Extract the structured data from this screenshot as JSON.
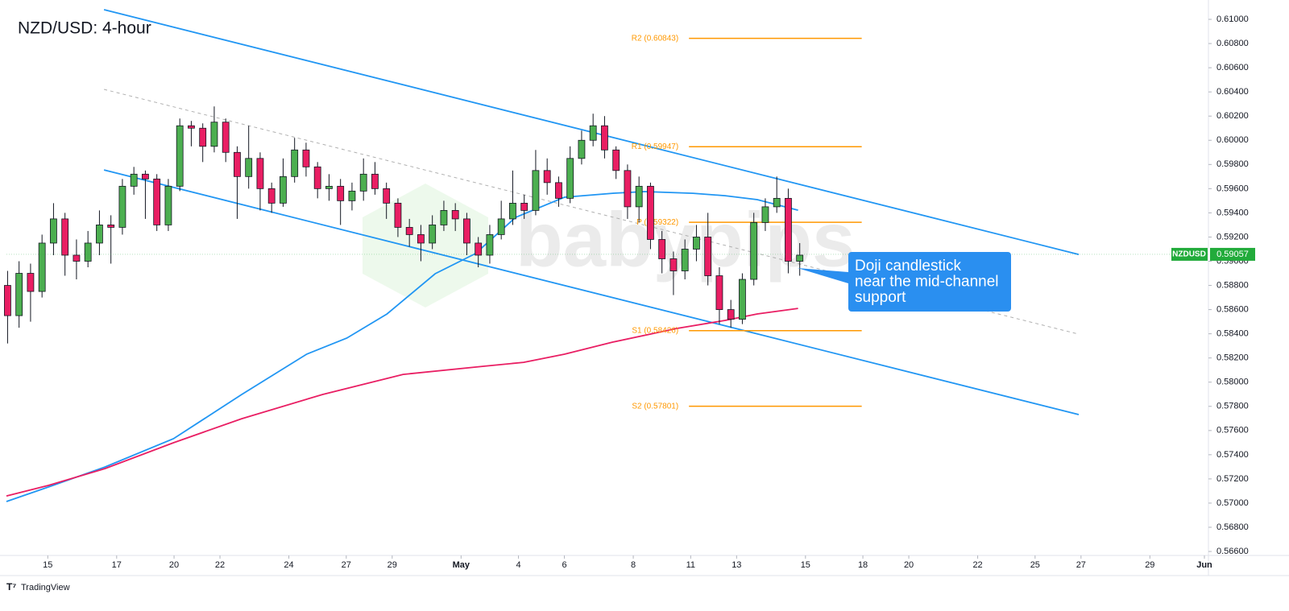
{
  "chart_data": {
    "type": "candlestick",
    "title": "NZD/USD: 4-hour",
    "watermark": "babypips",
    "footer": "TradingView",
    "x": [
      -7,
      -5,
      -3,
      -1,
      1,
      3,
      5,
      7,
      9,
      11,
      13,
      15,
      17,
      19,
      21,
      23,
      25,
      27,
      29,
      31,
      33,
      35,
      37,
      39,
      41,
      43,
      45,
      47,
      49,
      51,
      53,
      55,
      57,
      59,
      61,
      63,
      65,
      67,
      69,
      71,
      73,
      75,
      77,
      79,
      81,
      83,
      85,
      87,
      89,
      91,
      93,
      95,
      97,
      99,
      101,
      103,
      105,
      107,
      109,
      111,
      113,
      115,
      117,
      119,
      121,
      123,
      125,
      127,
      129,
      131
    ],
    "open": [
      0.588,
      0.5855,
      0.589,
      0.5875,
      0.5915,
      0.5935,
      0.5905,
      0.59,
      0.5915,
      0.593,
      0.5928,
      0.5962,
      0.5972,
      0.5968,
      0.593,
      0.5962,
      0.6012,
      0.601,
      0.5995,
      0.6015,
      0.599,
      0.597,
      0.5985,
      0.596,
      0.5948,
      0.597,
      0.5992,
      0.5978,
      0.596,
      0.5962,
      0.595,
      0.5958,
      0.5972,
      0.596,
      0.5948,
      0.5928,
      0.5922,
      0.5915,
      0.593,
      0.5942,
      0.5935,
      0.5915,
      0.5905,
      0.5922,
      0.5935,
      0.5948,
      0.5942,
      0.5975,
      0.5965,
      0.5952,
      0.5985,
      0.6,
      0.6012,
      0.5992,
      0.5975,
      0.5945,
      0.5962,
      0.5918,
      0.5902,
      0.5892,
      0.591,
      0.592,
      0.5888,
      0.586,
      0.5852,
      0.5885,
      0.5932,
      0.5945,
      0.5952,
      0.59
    ],
    "high": [
      0.5892,
      0.59,
      0.5898,
      0.5922,
      0.5948,
      0.594,
      0.5918,
      0.5925,
      0.5942,
      0.5938,
      0.5968,
      0.5978,
      0.5975,
      0.5972,
      0.5968,
      0.6018,
      0.6016,
      0.6014,
      0.6028,
      0.6018,
      0.5995,
      0.6012,
      0.599,
      0.5965,
      0.5985,
      0.6002,
      0.5998,
      0.5982,
      0.5972,
      0.5968,
      0.5965,
      0.5985,
      0.5982,
      0.5965,
      0.5952,
      0.5935,
      0.593,
      0.5938,
      0.595,
      0.5948,
      0.594,
      0.592,
      0.593,
      0.595,
      0.5975,
      0.5955,
      0.5992,
      0.5985,
      0.597,
      0.5995,
      0.6008,
      0.6022,
      0.602,
      0.5995,
      0.598,
      0.597,
      0.5965,
      0.5925,
      0.5908,
      0.5918,
      0.593,
      0.594,
      0.5895,
      0.5868,
      0.589,
      0.594,
      0.5952,
      0.597,
      0.596,
      0.5915
    ],
    "low": [
      0.5832,
      0.5845,
      0.585,
      0.587,
      0.5905,
      0.5888,
      0.5885,
      0.5895,
      0.5905,
      0.5898,
      0.5922,
      0.5955,
      0.5935,
      0.5925,
      0.5925,
      0.5958,
      0.5995,
      0.5982,
      0.599,
      0.5982,
      0.5935,
      0.596,
      0.5942,
      0.594,
      0.5945,
      0.5965,
      0.597,
      0.5952,
      0.595,
      0.593,
      0.5942,
      0.595,
      0.5955,
      0.5935,
      0.592,
      0.5912,
      0.59,
      0.591,
      0.5925,
      0.5925,
      0.5905,
      0.5895,
      0.5898,
      0.5918,
      0.593,
      0.5935,
      0.5938,
      0.5955,
      0.5945,
      0.5948,
      0.598,
      0.5995,
      0.5985,
      0.5968,
      0.5935,
      0.5932,
      0.591,
      0.589,
      0.5872,
      0.5885,
      0.59,
      0.588,
      0.5848,
      0.5845,
      0.5848,
      0.588,
      0.5925,
      0.594,
      0.589,
      0.5888
    ],
    "close": [
      0.5855,
      0.589,
      0.5875,
      0.5915,
      0.5935,
      0.5905,
      0.59,
      0.5915,
      0.593,
      0.5928,
      0.5962,
      0.5972,
      0.5968,
      0.593,
      0.5962,
      0.6012,
      0.601,
      0.5995,
      0.6015,
      0.599,
      0.597,
      0.5985,
      0.596,
      0.5948,
      0.597,
      0.5992,
      0.5978,
      0.596,
      0.5962,
      0.595,
      0.5958,
      0.5972,
      0.596,
      0.5948,
      0.5928,
      0.5922,
      0.5915,
      0.593,
      0.5942,
      0.5935,
      0.5915,
      0.5905,
      0.5922,
      0.5935,
      0.5948,
      0.5942,
      0.5975,
      0.5965,
      0.5952,
      0.5985,
      0.6,
      0.6012,
      0.5992,
      0.5975,
      0.5945,
      0.5962,
      0.5918,
      0.5902,
      0.5892,
      0.591,
      0.592,
      0.5888,
      0.586,
      0.5852,
      0.5885,
      0.5932,
      0.5945,
      0.5952,
      0.59,
      0.5905
    ],
    "up_color": "#4caf50",
    "down_color": "#e91e63",
    "xlim": [
      -7.2,
      202.2
    ],
    "xticks": [
      {
        "value": 0,
        "label": "15"
      },
      {
        "value": 12,
        "label": "17"
      },
      {
        "value": 22,
        "label": "20"
      },
      {
        "value": 30,
        "label": "22"
      },
      {
        "value": 42,
        "label": "24"
      },
      {
        "value": 52,
        "label": "27"
      },
      {
        "value": 60,
        "label": "29"
      },
      {
        "value": 72,
        "label": "May"
      },
      {
        "value": 82,
        "label": "4"
      },
      {
        "value": 90,
        "label": "6"
      },
      {
        "value": 102,
        "label": "8"
      },
      {
        "value": 112,
        "label": "11"
      },
      {
        "value": 120,
        "label": "13"
      },
      {
        "value": 132,
        "label": "15"
      },
      {
        "value": 142,
        "label": "18"
      },
      {
        "value": 150,
        "label": "20"
      },
      {
        "value": 162,
        "label": "22"
      },
      {
        "value": 172,
        "label": "25"
      },
      {
        "value": 180,
        "label": "27"
      },
      {
        "value": 192,
        "label": "29"
      },
      {
        "value": 201.5,
        "label": "Jun"
      }
    ],
    "ylim": [
      0.56567,
      0.6116
    ],
    "yticks": [
      {
        "value": 0.61,
        "label": "0.61000"
      },
      {
        "value": 0.608,
        "label": "0.60800"
      },
      {
        "value": 0.606,
        "label": "0.60600"
      },
      {
        "value": 0.604,
        "label": "0.60400"
      },
      {
        "value": 0.602,
        "label": "0.60200"
      },
      {
        "value": 0.6,
        "label": "0.60000"
      },
      {
        "value": 0.598,
        "label": "0.59800"
      },
      {
        "value": 0.596,
        "label": "0.59600"
      },
      {
        "value": 0.594,
        "label": "0.59400"
      },
      {
        "value": 0.592,
        "label": "0.59200"
      },
      {
        "value": 0.59,
        "label": "0.59000"
      },
      {
        "value": 0.588,
        "label": "0.58800"
      },
      {
        "value": 0.586,
        "label": "0.58600"
      },
      {
        "value": 0.584,
        "label": "0.58400"
      },
      {
        "value": 0.582,
        "label": "0.58200"
      },
      {
        "value": 0.58,
        "label": "0.58000"
      },
      {
        "value": 0.578,
        "label": "0.57800"
      },
      {
        "value": 0.576,
        "label": "0.57600"
      },
      {
        "value": 0.574,
        "label": "0.57400"
      },
      {
        "value": 0.572,
        "label": "0.57200"
      },
      {
        "value": 0.57,
        "label": "0.57000"
      },
      {
        "value": 0.568,
        "label": "0.56800"
      },
      {
        "value": 0.566,
        "label": "0.56600"
      }
    ],
    "grid": false,
    "lines": [
      {
        "color": "#2196f3",
        "dashed": false,
        "x": [
          9.8,
          179.6
        ],
        "values": [
          0.6108,
          0.59056
        ]
      },
      {
        "color": "#2196f3",
        "dashed": false,
        "x": [
          9.8,
          179.6
        ],
        "values": [
          0.59755,
          0.57732
        ]
      },
      {
        "color": "#b0b0b0",
        "dashed": true,
        "x": [
          9.8,
          179.6
        ],
        "values": [
          0.60421,
          0.58397
        ]
      },
      {
        "color": "#2196f3",
        "dashed": false,
        "x": [
          -7.2,
          0.1,
          10.0,
          21.9,
          33.8,
          45.1,
          52.1,
          59.1,
          67.5,
          74.5,
          81.5,
          90.0,
          98.4,
          104.0,
          112.4,
          118.0,
          123.6,
          130.7
        ],
        "values": [
          0.57013,
          0.57133,
          0.57299,
          0.57532,
          0.57898,
          0.58231,
          0.58364,
          0.58564,
          0.58897,
          0.59063,
          0.59363,
          0.59529,
          0.59562,
          0.59576,
          0.59562,
          0.59542,
          0.59509,
          0.59422
        ]
      },
      {
        "color": "#e91e63",
        "dashed": false,
        "x": [
          -7.2,
          0.1,
          10.0,
          21.9,
          33.8,
          47.9,
          61.9,
          75.9,
          82.9,
          90.0,
          98.4,
          109.6,
          118.0,
          123.6,
          130.7
        ],
        "values": [
          0.57059,
          0.57146,
          0.57286,
          0.57499,
          0.57698,
          0.57898,
          0.58064,
          0.58131,
          0.58164,
          0.58231,
          0.58331,
          0.58444,
          0.58511,
          0.58564,
          0.5861
        ]
      }
    ],
    "pivot_color": "#ff9800",
    "pivot_x": [
      111.7,
      141.8
    ],
    "pivots": [
      {
        "label": "R2 (0.60843)",
        "value": 0.60843
      },
      {
        "label": "R1 (0.59947)",
        "value": 0.59947
      },
      {
        "label": "P (0.59322)",
        "value": 0.59322
      },
      {
        "label": "S1 (0.58426)",
        "value": 0.58426
      },
      {
        "label": "S2 (0.57801)",
        "value": 0.57801
      }
    ],
    "last_price": {
      "symbol": "NZDUSD",
      "value": 0.59057,
      "color": "#22ab3b"
    },
    "annotation": {
      "lines": [
        "Doji candlestick",
        "near the mid-channel",
        "support"
      ],
      "color": "#2a8ff0"
    }
  }
}
